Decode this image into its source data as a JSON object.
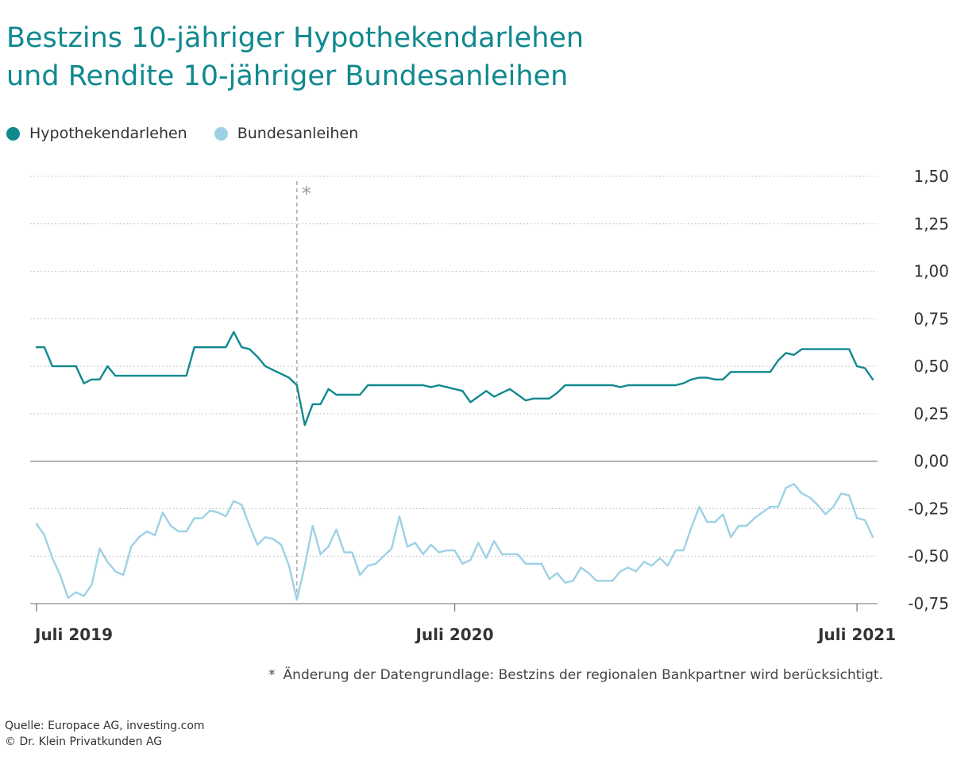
{
  "title": {
    "line1": "Bestzins 10-jähriger Hypothekendarlehen",
    "line2": "und Rendite 10-jähriger Bundesanleihen"
  },
  "legend": [
    {
      "label": "Hypothekendarlehen",
      "color": "#10898f"
    },
    {
      "label": "Bundesanleihen",
      "color": "#9dd1e6"
    }
  ],
  "footnote": {
    "marker": "*",
    "text": "Änderung der Datengrundlage: Bestzins der regionalen Bankpartner wird berücksichtigt."
  },
  "source": {
    "line1": "Quelle: Europace AG, investing.com",
    "line2": "© Dr. Klein Privatkunden AG"
  },
  "chart_data": {
    "type": "line",
    "title": "Bestzins 10-jähriger Hypothekendarlehen und Rendite 10-jähriger Bundesanleihen",
    "xlabel": "",
    "ylabel": "",
    "ylim": [
      -0.75,
      1.5
    ],
    "yticks": [
      1.5,
      1.25,
      1.0,
      0.75,
      0.5,
      0.25,
      0.0,
      -0.25,
      -0.5,
      -0.75
    ],
    "ytick_labels": [
      "1,50",
      "1,25",
      "1,00",
      "0,75",
      "0,50",
      "0,25",
      "0,00",
      "-0,25",
      "-0,50",
      "-0,75"
    ],
    "x_range": [
      0,
      106
    ],
    "x_ticks": [
      {
        "x": 0,
        "label": "Juli 2019"
      },
      {
        "x": 53,
        "label": "Juli 2020"
      },
      {
        "x": 104,
        "label": "Juli 2021"
      }
    ],
    "annotation": {
      "x": 33,
      "label": "*"
    },
    "grid": true,
    "series": [
      {
        "name": "Hypothekendarlehen",
        "color": "#10898f",
        "values": [
          0.6,
          0.6,
          0.5,
          0.5,
          0.5,
          0.5,
          0.41,
          0.43,
          0.43,
          0.5,
          0.45,
          0.45,
          0.45,
          0.45,
          0.45,
          0.45,
          0.45,
          0.45,
          0.45,
          0.45,
          0.6,
          0.6,
          0.6,
          0.6,
          0.6,
          0.68,
          0.6,
          0.59,
          0.55,
          0.5,
          0.48,
          0.46,
          0.44,
          0.4,
          0.19,
          0.3,
          0.3,
          0.38,
          0.35,
          0.35,
          0.35,
          0.35,
          0.4,
          0.4,
          0.4,
          0.4,
          0.4,
          0.4,
          0.4,
          0.4,
          0.39,
          0.4,
          0.39,
          0.38,
          0.37,
          0.31,
          0.34,
          0.37,
          0.34,
          0.36,
          0.38,
          0.35,
          0.32,
          0.33,
          0.33,
          0.33,
          0.36,
          0.4,
          0.4,
          0.4,
          0.4,
          0.4,
          0.4,
          0.4,
          0.39,
          0.4,
          0.4,
          0.4,
          0.4,
          0.4,
          0.4,
          0.4,
          0.41,
          0.43,
          0.44,
          0.44,
          0.43,
          0.43,
          0.47,
          0.47,
          0.47,
          0.47,
          0.47,
          0.47,
          0.53,
          0.57,
          0.56,
          0.59,
          0.59,
          0.59,
          0.59,
          0.59,
          0.59,
          0.59,
          0.5,
          0.49,
          0.43
        ]
      },
      {
        "name": "Bundesanleihen",
        "color": "#9dd1e6",
        "values": [
          -0.33,
          -0.39,
          -0.51,
          -0.6,
          -0.72,
          -0.69,
          -0.71,
          -0.65,
          -0.46,
          -0.53,
          -0.58,
          -0.6,
          -0.45,
          -0.4,
          -0.37,
          -0.39,
          -0.27,
          -0.34,
          -0.37,
          -0.37,
          -0.3,
          -0.3,
          -0.26,
          -0.27,
          -0.29,
          -0.21,
          -0.23,
          -0.34,
          -0.44,
          -0.4,
          -0.41,
          -0.44,
          -0.55,
          -0.73,
          -0.55,
          -0.34,
          -0.49,
          -0.45,
          -0.36,
          -0.48,
          -0.48,
          -0.6,
          -0.55,
          -0.54,
          -0.5,
          -0.46,
          -0.29,
          -0.45,
          -0.43,
          -0.49,
          -0.44,
          -0.48,
          -0.47,
          -0.47,
          -0.54,
          -0.52,
          -0.43,
          -0.51,
          -0.42,
          -0.49,
          -0.49,
          -0.49,
          -0.54,
          -0.54,
          -0.54,
          -0.62,
          -0.59,
          -0.64,
          -0.63,
          -0.56,
          -0.59,
          -0.63,
          -0.63,
          -0.63,
          -0.58,
          -0.56,
          -0.58,
          -0.53,
          -0.55,
          -0.51,
          -0.55,
          -0.47,
          -0.47,
          -0.35,
          -0.24,
          -0.32,
          -0.32,
          -0.28,
          -0.4,
          -0.34,
          -0.34,
          -0.3,
          -0.27,
          -0.24,
          -0.24,
          -0.14,
          -0.12,
          -0.17,
          -0.19,
          -0.23,
          -0.28,
          -0.24,
          -0.17,
          -0.18,
          -0.3,
          -0.31,
          -0.4
        ]
      }
    ]
  }
}
